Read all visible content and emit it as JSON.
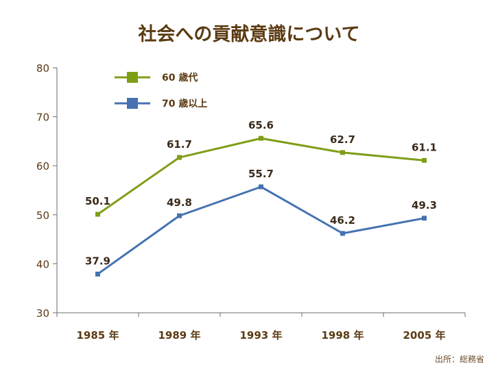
{
  "title": "社会への貢献意識について",
  "source": "出所：総務省",
  "chart_data": {
    "type": "line",
    "title": "社会への貢献意識について",
    "categories": [
      "1985 年",
      "1989 年",
      "1993 年",
      "1998 年",
      "2005 年"
    ],
    "ylim": [
      30,
      80
    ],
    "yticks": [
      30,
      40,
      50,
      60,
      70,
      80
    ],
    "legend_position": "top-left",
    "grid": false,
    "series": [
      {
        "name": "60 歳代",
        "color": "#7f9e17",
        "values": [
          50.1,
          61.7,
          65.6,
          62.7,
          61.1
        ]
      },
      {
        "name": "70 歳以上",
        "color": "#4572b1",
        "values": [
          37.9,
          49.8,
          55.7,
          46.2,
          49.3
        ]
      }
    ]
  }
}
